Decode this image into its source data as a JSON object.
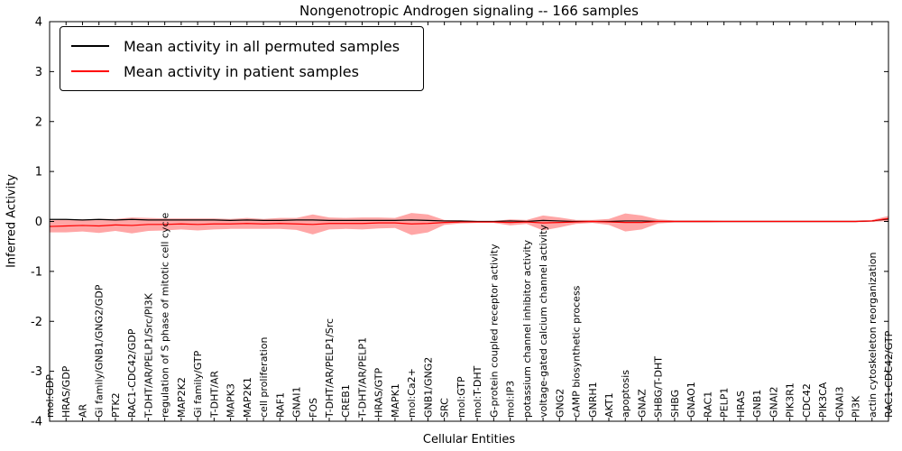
{
  "title": "Nongenotropic Androgen signaling -- 166 samples",
  "axes": {
    "x_label": "Cellular Entities",
    "y_label": "Inferred Activity",
    "y_ticks": [
      "4",
      "3",
      "2",
      "1",
      "0",
      "-1",
      "-2",
      "-3",
      "-4"
    ]
  },
  "legend": {
    "items": [
      {
        "label": "Mean activity in all permuted samples",
        "color": "#000000"
      },
      {
        "label": "Mean activity in patient samples",
        "color": "#ff0000"
      }
    ]
  },
  "chart_data": {
    "type": "line",
    "title": "Nongenotropic Androgen signaling -- 166 samples",
    "xlabel": "Cellular Entities",
    "ylabel": "Inferred Activity",
    "ylim": [
      -4,
      4
    ],
    "grid": false,
    "legend_position": "upper left",
    "categories": [
      "mol:GDP",
      "HRAS/GDP",
      "AR",
      "Gi family/GNB1/GNG2/GDP",
      "PTK2",
      "RAC1-CDC42/GDP",
      "T-DHT/AR/PELP1/Src/PI3K",
      "regulation of S phase of mitotic cell cycle",
      "MAP2K2",
      "Gi family/GTP",
      "T-DHT/AR",
      "MAPK3",
      "MAP2K1",
      "cell proliferation",
      "RAF1",
      "GNAI1",
      "FOS",
      "T-DHT/AR/PELP1/Src",
      "CREB1",
      "T-DHT/AR/PELP1",
      "HRAS/GTP",
      "MAPK1",
      "mol:Ca2+",
      "GNB1/GNG2",
      "SRC",
      "mol:GTP",
      "mol:T-DHT",
      "G-protein coupled receptor activity",
      "mol:IP3",
      "potassium channel inhibitor activity",
      "voltage-gated calcium channel activity",
      "GNG2",
      "cAMP biosynthetic process",
      "GNRH1",
      "AKT1",
      "apoptosis",
      "GNAZ",
      "SHBG/T-DHT",
      "SHBG",
      "GNAO1",
      "RAC1",
      "PELP1",
      "HRAS",
      "GNB1",
      "GNAI2",
      "PIK3R1",
      "CDC42",
      "PIK3CA",
      "GNAI3",
      "PI3K",
      "actin cytoskeleton reorganization",
      "RAC1-CDC42/GTP"
    ],
    "series": [
      {
        "name": "Mean activity in all permuted samples",
        "color": "#000000",
        "values": [
          0.04,
          0.04,
          0.03,
          0.04,
          0.03,
          0.04,
          0.03,
          0.03,
          0.03,
          0.03,
          0.03,
          0.02,
          0.03,
          0.02,
          0.02,
          0.03,
          0.03,
          0.02,
          0.02,
          0.02,
          0.02,
          0.02,
          0.03,
          0.02,
          0.01,
          0.01,
          0.0,
          0.0,
          0.01,
          0.0,
          0.02,
          0.01,
          0.0,
          0.0,
          0.0,
          0.01,
          0.01,
          0.0,
          0.0,
          0.0,
          0.0,
          0.0,
          0.0,
          0.0,
          0.0,
          0.0,
          0.0,
          0.0,
          0.0,
          0.0,
          0.01,
          0.05
        ]
      },
      {
        "name": "Mean activity in patient samples",
        "color": "#ff0000",
        "values": [
          -0.1,
          -0.09,
          -0.08,
          -0.09,
          -0.07,
          -0.08,
          -0.06,
          -0.06,
          -0.05,
          -0.06,
          -0.05,
          -0.05,
          -0.04,
          -0.05,
          -0.04,
          -0.05,
          -0.06,
          -0.04,
          -0.04,
          -0.04,
          -0.03,
          -0.03,
          -0.05,
          -0.04,
          -0.02,
          -0.01,
          -0.01,
          -0.01,
          -0.02,
          -0.01,
          -0.03,
          -0.02,
          -0.01,
          0.0,
          -0.01,
          -0.02,
          -0.02,
          0.0,
          0.0,
          0.0,
          0.0,
          0.0,
          0.0,
          0.0,
          0.0,
          0.0,
          0.0,
          0.0,
          0.0,
          0.0,
          0.01,
          0.06
        ]
      }
    ],
    "band": {
      "name": "patient sample activity spread",
      "fill_color": "#ff0000",
      "fill_opacity": 0.35,
      "upper": [
        0.02,
        0.04,
        0.04,
        0.05,
        0.05,
        0.08,
        0.07,
        0.06,
        0.06,
        0.06,
        0.06,
        0.05,
        0.07,
        0.05,
        0.07,
        0.07,
        0.14,
        0.08,
        0.07,
        0.08,
        0.08,
        0.07,
        0.17,
        0.14,
        0.03,
        0.02,
        0.01,
        0.01,
        0.04,
        0.03,
        0.12,
        0.08,
        0.03,
        0.03,
        0.05,
        0.16,
        0.12,
        0.04,
        0.02,
        0.02,
        0.02,
        0.015,
        0.015,
        0.015,
        0.015,
        0.015,
        0.015,
        0.015,
        0.015,
        0.015,
        0.03,
        0.11
      ],
      "lower": [
        -0.22,
        -0.22,
        -0.2,
        -0.23,
        -0.19,
        -0.24,
        -0.19,
        -0.18,
        -0.16,
        -0.18,
        -0.16,
        -0.15,
        -0.15,
        -0.15,
        -0.15,
        -0.17,
        -0.26,
        -0.16,
        -0.15,
        -0.16,
        -0.14,
        -0.13,
        -0.27,
        -0.22,
        -0.07,
        -0.04,
        -0.03,
        -0.03,
        -0.08,
        -0.05,
        -0.18,
        -0.12,
        -0.05,
        -0.03,
        -0.07,
        -0.2,
        -0.16,
        -0.04,
        -0.02,
        -0.02,
        -0.02,
        -0.015,
        -0.015,
        -0.015,
        -0.015,
        -0.015,
        -0.015,
        -0.015,
        -0.015,
        -0.015,
        -0.01,
        0.01
      ]
    }
  }
}
